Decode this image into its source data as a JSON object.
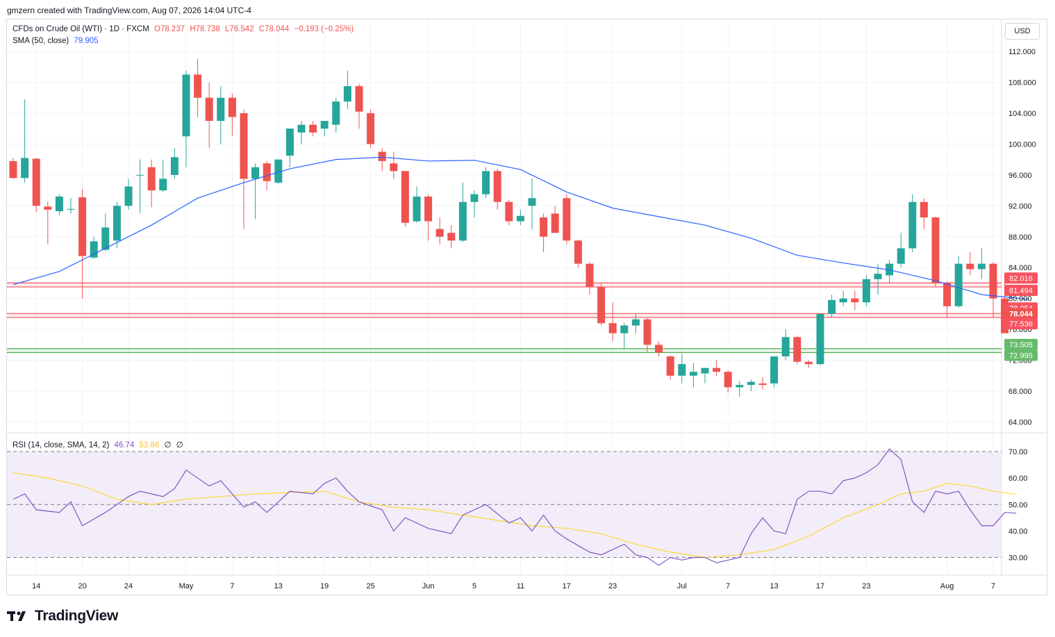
{
  "header": {
    "attribution": "gmzern created with TradingView.com, Aug 07, 2026 14:04 UTC-4"
  },
  "legend": {
    "symbol": "CFDs on Crude Oil (WTI) · 1D · FXCM",
    "open": "O78.237",
    "high": "H78.738",
    "low": "L76.542",
    "close": "C78.044",
    "change": "−0.193 (−0.25%)",
    "sma_label": "SMA (50, close)",
    "sma_value": "79.905",
    "rsi_label": "RSI (14, close, SMA, 14, 2)",
    "rsi_value": "46.74",
    "rsi_ma_value": "53.86",
    "rsi_extra1": "∅",
    "rsi_extra2": "∅"
  },
  "currency": "USD",
  "brand": "TradingView",
  "colors": {
    "up": "#26a69a",
    "down": "#ef5350",
    "sma": "#2962ff",
    "rsi": "#7e57c2",
    "rsi_ma": "#fdd835",
    "resistance_zone": "#f7525f",
    "support_zone": "#4caf50",
    "rsi_band": "#ede7f6"
  },
  "chart_data": [
    {
      "type": "candlestick",
      "title": "CFDs on Crude Oil (WTI) · 1D · FXCM",
      "ylim": [
        62.5,
        113.5
      ],
      "yticks": [
        "112.000",
        "108.000",
        "104.000",
        "100.000",
        "96.000",
        "92.000",
        "88.000",
        "84.000",
        "80.000",
        "76.000",
        "72.000",
        "68.000",
        "64.000"
      ],
      "x_labels": [
        {
          "i": 2,
          "label": "14"
        },
        {
          "i": 6,
          "label": "20"
        },
        {
          "i": 10,
          "label": "24"
        },
        {
          "i": 15,
          "label": "May"
        },
        {
          "i": 19,
          "label": "7"
        },
        {
          "i": 23,
          "label": "13"
        },
        {
          "i": 27,
          "label": "19"
        },
        {
          "i": 31,
          "label": "25"
        },
        {
          "i": 36,
          "label": "Jun"
        },
        {
          "i": 40,
          "label": "5"
        },
        {
          "i": 44,
          "label": "11"
        },
        {
          "i": 48,
          "label": "17"
        },
        {
          "i": 52,
          "label": "23"
        },
        {
          "i": 58,
          "label": "Jul"
        },
        {
          "i": 62,
          "label": "7"
        },
        {
          "i": 66,
          "label": "13"
        },
        {
          "i": 70,
          "label": "17"
        },
        {
          "i": 74,
          "label": "23"
        },
        {
          "i": 81,
          "label": "Aug"
        },
        {
          "i": 85,
          "label": "7"
        }
      ],
      "ohlc": [
        [
          97.8,
          98.2,
          95.5,
          95.6
        ],
        [
          95.6,
          105.8,
          95.0,
          98.2
        ],
        [
          98.1,
          98.2,
          91.2,
          92.0
        ],
        [
          91.9,
          92.6,
          87.0,
          91.5
        ],
        [
          91.3,
          93.5,
          90.8,
          93.2
        ],
        [
          91.5,
          93.0,
          91.0,
          91.6
        ],
        [
          93.1,
          94.2,
          80.0,
          85.5
        ],
        [
          85.3,
          88.0,
          85.1,
          87.4
        ],
        [
          86.3,
          91.0,
          86.1,
          89.2
        ],
        [
          87.5,
          92.5,
          86.5,
          92.0
        ],
        [
          92.0,
          95.5,
          91.5,
          94.5
        ],
        [
          96.0,
          98.0,
          91.0,
          96.0
        ],
        [
          97.0,
          98.0,
          91.8,
          94.0
        ],
        [
          94.0,
          98.0,
          93.8,
          95.5
        ],
        [
          96.0,
          99.5,
          95.5,
          98.3
        ],
        [
          101.0,
          109.5,
          97.0,
          109.0
        ],
        [
          109.0,
          111.0,
          103.5,
          106.0
        ],
        [
          106.0,
          108.0,
          99.5,
          103.0
        ],
        [
          103.0,
          107.5,
          100.0,
          106.0
        ],
        [
          106.0,
          106.5,
          101.0,
          103.5
        ],
        [
          104.0,
          104.5,
          89.0,
          95.5
        ],
        [
          95.5,
          97.5,
          90.3,
          97.0
        ],
        [
          97.5,
          97.8,
          94.0,
          95.2
        ],
        [
          95.0,
          98.0,
          94.8,
          98.0
        ],
        [
          98.5,
          102.0,
          97.0,
          102.0
        ],
        [
          101.5,
          103.0,
          100.0,
          102.5
        ],
        [
          102.5,
          103.0,
          101.0,
          101.5
        ],
        [
          102.0,
          103.0,
          101.0,
          103.0
        ],
        [
          102.5,
          106.0,
          101.5,
          105.5
        ],
        [
          105.5,
          109.5,
          104.5,
          107.5
        ],
        [
          107.5,
          107.8,
          102.0,
          104.2
        ],
        [
          104.0,
          104.5,
          99.5,
          100.0
        ],
        [
          99.0,
          99.5,
          96.5,
          97.8
        ],
        [
          97.5,
          99.0,
          95.5,
          96.5
        ],
        [
          96.5,
          96.5,
          89.3,
          89.8
        ],
        [
          90.0,
          94.5,
          89.8,
          93.2
        ],
        [
          93.2,
          93.5,
          87.5,
          90.0
        ],
        [
          89.0,
          90.5,
          87.0,
          88.0
        ],
        [
          88.5,
          89.5,
          86.5,
          87.5
        ],
        [
          87.5,
          95.0,
          87.3,
          92.5
        ],
        [
          92.5,
          94.0,
          90.5,
          93.5
        ],
        [
          93.5,
          97.0,
          93.0,
          96.5
        ],
        [
          96.5,
          96.8,
          91.5,
          92.5
        ],
        [
          92.5,
          92.8,
          89.5,
          90.0
        ],
        [
          90.0,
          91.5,
          89.5,
          90.7
        ],
        [
          92.0,
          95.5,
          89.0,
          93.0
        ],
        [
          90.5,
          91.0,
          86.0,
          88.0
        ],
        [
          91.0,
          92.0,
          88.5,
          88.5
        ],
        [
          93.0,
          93.5,
          87.0,
          87.5
        ],
        [
          87.5,
          87.6,
          84.0,
          84.5
        ],
        [
          84.5,
          84.7,
          80.5,
          81.5
        ],
        [
          81.5,
          82.0,
          76.5,
          76.8
        ],
        [
          76.8,
          79.5,
          74.5,
          75.5
        ],
        [
          75.5,
          76.8,
          73.5,
          76.5
        ],
        [
          76.5,
          78.0,
          75.5,
          77.3
        ],
        [
          77.3,
          77.5,
          73.0,
          74.0
        ],
        [
          74.0,
          74.5,
          72.5,
          73.0
        ],
        [
          72.5,
          72.6,
          69.5,
          70.0
        ],
        [
          70.0,
          72.8,
          69.0,
          71.5
        ],
        [
          70.0,
          71.6,
          68.5,
          70.5
        ],
        [
          70.3,
          71.0,
          69.0,
          71.0
        ],
        [
          71.0,
          72.0,
          70.0,
          70.5
        ],
        [
          70.5,
          70.7,
          67.8,
          68.5
        ],
        [
          68.5,
          69.3,
          67.3,
          68.8
        ],
        [
          68.8,
          69.5,
          68.0,
          69.2
        ],
        [
          69.0,
          69.8,
          68.2,
          68.8
        ],
        [
          69.0,
          72.5,
          68.5,
          72.5
        ],
        [
          72.5,
          76.0,
          72.0,
          75.0
        ],
        [
          75.0,
          75.2,
          71.5,
          71.8
        ],
        [
          71.8,
          72.0,
          71.0,
          71.5
        ],
        [
          71.5,
          78.0,
          71.3,
          78.0
        ],
        [
          78.0,
          80.5,
          77.5,
          79.8
        ],
        [
          79.5,
          81.0,
          79.0,
          80.0
        ],
        [
          80.0,
          81.0,
          78.5,
          79.5
        ],
        [
          79.5,
          83.0,
          79.0,
          82.5
        ],
        [
          82.5,
          84.5,
          80.5,
          83.2
        ],
        [
          83.0,
          85.0,
          82.0,
          84.5
        ],
        [
          84.5,
          88.5,
          84.0,
          86.5
        ],
        [
          86.5,
          93.5,
          86.0,
          92.5
        ],
        [
          92.5,
          93.0,
          89.0,
          90.5
        ],
        [
          90.5,
          90.6,
          81.5,
          82.0
        ],
        [
          82.0,
          82.2,
          77.5,
          79.0
        ],
        [
          79.0,
          85.5,
          78.8,
          84.5
        ],
        [
          84.5,
          86.0,
          83.0,
          83.8
        ],
        [
          83.8,
          86.5,
          82.5,
          84.5
        ],
        [
          84.5,
          84.7,
          77.5,
          80.0
        ],
        [
          80.0,
          82.5,
          76.0,
          75.5
        ]
      ],
      "sma50": [
        [
          0,
          81.8
        ],
        [
          4,
          83.5
        ],
        [
          8,
          86.5
        ],
        [
          12,
          89.5
        ],
        [
          16,
          93.0
        ],
        [
          20,
          95.0
        ],
        [
          24,
          96.8
        ],
        [
          28,
          98.0
        ],
        [
          32,
          98.3
        ],
        [
          36,
          97.8
        ],
        [
          40,
          97.9
        ],
        [
          44,
          96.7
        ],
        [
          48,
          93.8
        ],
        [
          52,
          91.7
        ],
        [
          56,
          90.6
        ],
        [
          60,
          89.5
        ],
        [
          64,
          87.8
        ],
        [
          68,
          85.6
        ],
        [
          72,
          84.6
        ],
        [
          76,
          83.7
        ],
        [
          80,
          82.3
        ],
        [
          84,
          80.5
        ],
        [
          88,
          79.9
        ]
      ],
      "levels": {
        "resistance_zone": [
          81.494,
          82.016
        ],
        "mid_zone": [
          77.536,
          78.054
        ],
        "support_zone": [
          72.995,
          73.505
        ]
      },
      "price_labels": [
        {
          "text": "82.016",
          "value": 82.016,
          "kind": "resistance"
        },
        {
          "text": "81.494",
          "value": 81.494,
          "kind": "resistance"
        },
        {
          "text": "78.054",
          "value": 78.054,
          "kind": "resistance"
        },
        {
          "text": "78.044",
          "value": 78.044,
          "kind": "last"
        },
        {
          "text": "02:40:13",
          "value": 76.9,
          "kind": "last"
        },
        {
          "text": "77.536",
          "value": 77.536,
          "kind": "resistance"
        },
        {
          "text": "73.505",
          "value": 73.505,
          "kind": "support"
        },
        {
          "text": "72.995",
          "value": 72.995,
          "kind": "support"
        }
      ],
      "last_candle": {
        "o": 78.237,
        "h": 78.738,
        "l": 76.542,
        "c": 78.044
      }
    },
    {
      "type": "line",
      "title": "RSI (14, close, SMA, 14, 2)",
      "ylim": [
        26,
        72
      ],
      "yticks": [
        "70.00",
        "60.00",
        "50.00",
        "40.00",
        "30.00"
      ],
      "bands": [
        30,
        50,
        70
      ],
      "rsi": [
        [
          0,
          52
        ],
        [
          1,
          54
        ],
        [
          2,
          48
        ],
        [
          4,
          47
        ],
        [
          5,
          51
        ],
        [
          6,
          42
        ],
        [
          8,
          47
        ],
        [
          10,
          53
        ],
        [
          11,
          55
        ],
        [
          13,
          53
        ],
        [
          14,
          56
        ],
        [
          15,
          63
        ],
        [
          17,
          57
        ],
        [
          18,
          59
        ],
        [
          20,
          49
        ],
        [
          21,
          51
        ],
        [
          22,
          47
        ],
        [
          24,
          55
        ],
        [
          26,
          54
        ],
        [
          27,
          58
        ],
        [
          28,
          60
        ],
        [
          29,
          55
        ],
        [
          30,
          51
        ],
        [
          32,
          48
        ],
        [
          33,
          40
        ],
        [
          34,
          45
        ],
        [
          36,
          41
        ],
        [
          38,
          39
        ],
        [
          39,
          46
        ],
        [
          41,
          50
        ],
        [
          43,
          43
        ],
        [
          44,
          45
        ],
        [
          45,
          40
        ],
        [
          46,
          46
        ],
        [
          47,
          40
        ],
        [
          48,
          37
        ],
        [
          50,
          32
        ],
        [
          51,
          31
        ],
        [
          52,
          33
        ],
        [
          53,
          35
        ],
        [
          54,
          31
        ],
        [
          55,
          30
        ],
        [
          56,
          27
        ],
        [
          57,
          30
        ],
        [
          58,
          29
        ],
        [
          59,
          30
        ],
        [
          60,
          30
        ],
        [
          61,
          28
        ],
        [
          62,
          29
        ],
        [
          63,
          30
        ],
        [
          64,
          39
        ],
        [
          65,
          45
        ],
        [
          66,
          40
        ],
        [
          67,
          39
        ],
        [
          68,
          52
        ],
        [
          69,
          55
        ],
        [
          70,
          55
        ],
        [
          71,
          54
        ],
        [
          72,
          59
        ],
        [
          73,
          60
        ],
        [
          74,
          62
        ],
        [
          75,
          65
        ],
        [
          76,
          71
        ],
        [
          77,
          67
        ],
        [
          78,
          51
        ],
        [
          79,
          47
        ],
        [
          80,
          55
        ],
        [
          81,
          54
        ],
        [
          82,
          55
        ],
        [
          83,
          48
        ],
        [
          84,
          42
        ],
        [
          85,
          42
        ],
        [
          86,
          47
        ],
        [
          87,
          46.74
        ]
      ],
      "rsi_ma": [
        [
          0,
          62
        ],
        [
          3,
          60
        ],
        [
          6,
          57
        ],
        [
          9,
          52
        ],
        [
          12,
          50
        ],
        [
          15,
          52
        ],
        [
          18,
          53
        ],
        [
          21,
          54
        ],
        [
          24,
          54.5
        ],
        [
          27,
          55
        ],
        [
          30,
          51
        ],
        [
          33,
          49
        ],
        [
          36,
          48
        ],
        [
          39,
          46
        ],
        [
          42,
          44
        ],
        [
          45,
          42
        ],
        [
          48,
          41
        ],
        [
          51,
          39
        ],
        [
          54,
          35
        ],
        [
          57,
          32
        ],
        [
          60,
          30
        ],
        [
          63,
          31
        ],
        [
          66,
          33
        ],
        [
          69,
          38
        ],
        [
          72,
          45
        ],
        [
          75,
          50
        ],
        [
          77,
          54
        ],
        [
          79,
          55
        ],
        [
          81,
          58
        ],
        [
          83,
          57
        ],
        [
          85,
          55
        ],
        [
          87,
          53.86
        ]
      ]
    }
  ]
}
